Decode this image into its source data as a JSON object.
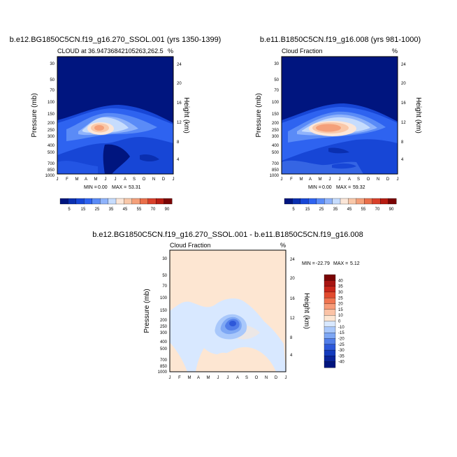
{
  "panels": [
    {
      "id": "left",
      "title": "b.e12.BG1850C5CN.f19_g16.270_SSOL.001 (yrs 1350-1399)",
      "subtitle_left": "CLOUD at 36.94736842105263,262.5",
      "subtitle_right": "%",
      "min_label": "MIN =",
      "min_value": "0.00",
      "max_label": "MAX =",
      "max_value": "53.31"
    },
    {
      "id": "right",
      "title": "b.e11.B1850C5CN.f19_g16.008 (yrs 981-1000)",
      "subtitle_left": "Cloud Fraction",
      "subtitle_right": "%",
      "min_label": "MIN =",
      "min_value": "0.00",
      "max_label": "MAX =",
      "max_value": "59.32"
    },
    {
      "id": "diff",
      "title": "b.e12.BG1850C5CN.f19_g16.270_SSOL.001 - b.e11.B1850C5CN.f19_g16.008",
      "subtitle_left": "Cloud Fraction",
      "subtitle_right": "%",
      "min_label": "MIN =",
      "min_value": "-22.79",
      "max_label": "MAX =",
      "max_value": "5.12"
    }
  ],
  "colors": {
    "background_level": "#00157f",
    "hi_peak": "#f08a6a",
    "diff_base": "#fde6d2",
    "diff_negative": "#d8e8ff"
  },
  "chart_data": [
    {
      "type": "heatmap",
      "panel": "left",
      "xlabel": "",
      "ylabel": "Pressure (mb)",
      "ylabel_right": "Height (km)",
      "x_ticks": [
        "J",
        "F",
        "M",
        "A",
        "M",
        "J",
        "J",
        "A",
        "S",
        "O",
        "N",
        "D",
        "J"
      ],
      "y_ticks": [
        "30",
        "50",
        "70",
        "100",
        "150",
        "200",
        "250",
        "300",
        "400",
        "500",
        "700",
        "850",
        "1000"
      ],
      "y_ticks_right": [
        "24",
        "20",
        "16",
        "12",
        "8",
        "4"
      ],
      "colorbar_ticks": [
        "5",
        "15",
        "25",
        "35",
        "45",
        "55",
        "70",
        "90"
      ],
      "colorbar_colors": [
        "#00157f",
        "#0a2fb0",
        "#1746d6",
        "#2e63f0",
        "#5a8bf7",
        "#8fb3fb",
        "#c6dcfd",
        "#fbe6d8",
        "#f9c8a9",
        "#f4a07a",
        "#ea6f4a",
        "#d9402a",
        "#b81c12",
        "#7a0404"
      ],
      "value_min": 0.0,
      "value_max": 53.31,
      "peak": {
        "month": "M-J",
        "pressure": 200,
        "value": 53.31
      }
    },
    {
      "type": "heatmap",
      "panel": "right",
      "xlabel": "",
      "ylabel": "Pressure (mb)",
      "ylabel_right": "Height (km)",
      "x_ticks": [
        "J",
        "F",
        "M",
        "A",
        "M",
        "J",
        "J",
        "A",
        "S",
        "O",
        "N",
        "D",
        "J"
      ],
      "y_ticks": [
        "30",
        "50",
        "70",
        "100",
        "150",
        "200",
        "250",
        "300",
        "400",
        "500",
        "700",
        "850",
        "1000"
      ],
      "y_ticks_right": [
        "24",
        "20",
        "16",
        "12",
        "8",
        "4"
      ],
      "colorbar_ticks": [
        "5",
        "15",
        "25",
        "35",
        "45",
        "55",
        "70",
        "90"
      ],
      "colorbar_colors": [
        "#00157f",
        "#0a2fb0",
        "#1746d6",
        "#2e63f0",
        "#5a8bf7",
        "#8fb3fb",
        "#c6dcfd",
        "#fbe6d8",
        "#f9c8a9",
        "#f4a07a",
        "#ea6f4a",
        "#d9402a",
        "#b81c12",
        "#7a0404"
      ],
      "value_min": 0.0,
      "value_max": 59.32,
      "peak": {
        "month": "M-J",
        "pressure": 200,
        "value": 59.32
      }
    },
    {
      "type": "heatmap",
      "panel": "diff",
      "xlabel": "",
      "ylabel": "Pressure (mb)",
      "ylabel_right": "Height (km)",
      "x_ticks": [
        "J",
        "F",
        "M",
        "A",
        "M",
        "J",
        "J",
        "A",
        "S",
        "O",
        "N",
        "D",
        "J"
      ],
      "y_ticks": [
        "30",
        "50",
        "70",
        "100",
        "150",
        "200",
        "250",
        "300",
        "400",
        "500",
        "700",
        "850",
        "1000"
      ],
      "y_ticks_right": [
        "24",
        "20",
        "16",
        "12",
        "8",
        "4"
      ],
      "colorbar_ticks": [
        "40",
        "35",
        "30",
        "25",
        "20",
        "15",
        "10",
        "0",
        "-10",
        "-15",
        "-20",
        "-25",
        "-30",
        "-35",
        "-40"
      ],
      "colorbar_colors": [
        "#7a0404",
        "#a81512",
        "#c8261a",
        "#e24a2e",
        "#f07450",
        "#f79b78",
        "#fbc3a6",
        "#fde6d2",
        "#d8e8ff",
        "#a9c8fb",
        "#7ea7f4",
        "#527ee9",
        "#2d58d9",
        "#143bbd",
        "#0a249a",
        "#00157f"
      ],
      "value_min": -22.79,
      "value_max": 5.12,
      "min_location": {
        "month": "J-A",
        "pressure": 200,
        "value": -22.79
      }
    }
  ]
}
